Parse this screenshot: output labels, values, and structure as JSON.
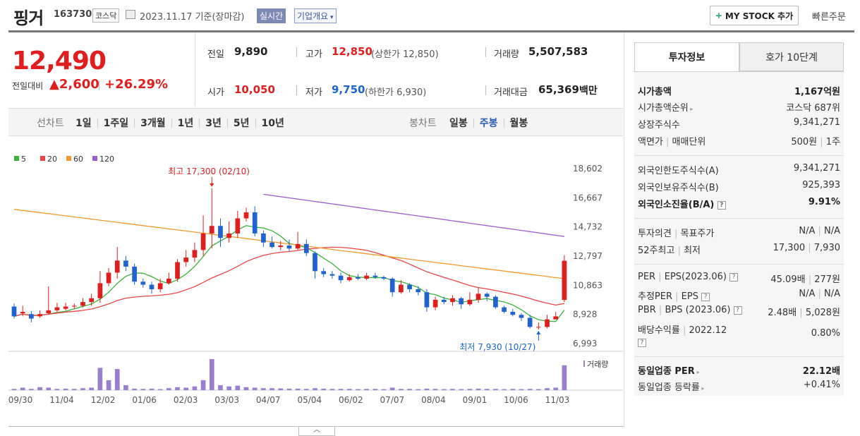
{
  "header": {
    "name": "핑거",
    "code": "163730",
    "market_tag": "코스닥",
    "date": "2023.11.17  기준(장마감)",
    "realtime": "실시간",
    "overview": "기업개요",
    "mystock": "MY STOCK 추가",
    "quick": "빠른주문"
  },
  "price": {
    "current": "12,490",
    "diff_label": "전일대비",
    "diff": "▲2,600",
    "rate": "+26.29%"
  },
  "quote": {
    "prev_label": "전일",
    "prev": "9,890",
    "high_label": "고가",
    "high": "12,850",
    "upper_limit": "(상한가 12,850)",
    "volume_label": "거래량",
    "volume": "5,507,583",
    "open_label": "시가",
    "open": "10,050",
    "low_label": "저가",
    "low": "9,750",
    "lower_limit": "(하한가 6,930)",
    "amount_label": "거래대금",
    "amount": "65,369",
    "amount_unit": "백만"
  },
  "periods": {
    "line_label": "선차트",
    "line": [
      "1일",
      "1주일",
      "3개월",
      "1년",
      "3년",
      "5년",
      "10년"
    ],
    "candle_label": "봉차트",
    "candle": [
      "일봉",
      "주봉",
      "월봉"
    ],
    "active": "주봉"
  },
  "tabs": [
    "투자정보",
    "호가 10단계"
  ],
  "info": {
    "market_cap_label": "시가총액",
    "market_cap": "1,167억원",
    "rank_label": "시가총액순위",
    "rank": "코스닥 687위",
    "shares_label": "상장주식수",
    "shares": "9,341,271",
    "par_label": "액면가",
    "unit_label": "매매단위",
    "par": "500원",
    "unit": "1주",
    "foreign_limit_label": "외국인한도주식수(A)",
    "foreign_limit": "9,341,271",
    "foreign_hold_label": "외국인보유주식수(B)",
    "foreign_hold": "925,393",
    "foreign_rate_label": "외국인소진율(B/A)",
    "foreign_rate": "9.91%",
    "opinion_label": "투자의견",
    "target_label": "목표주가",
    "opinion": "N/A",
    "target": "N/A",
    "w52_label": "52주최고",
    "w52_low_label": "최저",
    "w52_high": "17,300",
    "w52_low": "7,930",
    "per_label": "PER",
    "eps_label": "EPS(2023.06)",
    "per": "45.09배",
    "eps": "277원",
    "est_per_label": "추정PER",
    "est_eps_label": "EPS",
    "est_per": "N/A",
    "est_eps": "N/A",
    "pbr_label": "PBR",
    "bps_label": "BPS (2023.06)",
    "pbr": "2.48배",
    "bps": "5,028원",
    "div_label": "배당수익률",
    "div_date": "2022.12",
    "div": "0.80%",
    "sector_per_label": "동일업종 PER",
    "sector_per": "22.12배",
    "sector_rate_label": "동일업종 등락률",
    "sector_rate": "+0.41%"
  },
  "chart_data": {
    "type": "candlestick",
    "legend": [
      {
        "name": "5",
        "color": "#3cb33c"
      },
      {
        "name": "20",
        "color": "#e84646"
      },
      {
        "name": "60",
        "color": "#f39a2c"
      },
      {
        "name": "120",
        "color": "#9b5fd0"
      }
    ],
    "y_ticks": [
      "18,602",
      "16,667",
      "14,732",
      "12,797",
      "10,863",
      "8,928",
      "6,993"
    ],
    "ylim": [
      6993,
      18602
    ],
    "x_ticks": [
      "09/30",
      "11/04",
      "12/02",
      "01/06",
      "02/03",
      "03/03",
      "04/07",
      "05/04",
      "06/02",
      "07/07",
      "08/04",
      "09/01",
      "10/06",
      "11/03"
    ],
    "max_label": "최고 17,300 (02/10)",
    "min_label": "최저 7,930 (10/27)",
    "volume_label": "거래량",
    "candles": [
      [
        9450,
        8800,
        9650,
        8650
      ],
      [
        9000,
        9100,
        9500,
        8800
      ],
      [
        8950,
        8650,
        9150,
        8400
      ],
      [
        8800,
        8950,
        9200,
        8700
      ],
      [
        9000,
        9200,
        10800,
        8900
      ],
      [
        9200,
        9400,
        9700,
        9100
      ],
      [
        9300,
        9450,
        9700,
        9200
      ],
      [
        9450,
        9500,
        9650,
        9300
      ],
      [
        9500,
        9750,
        10000,
        9400
      ],
      [
        9750,
        10000,
        10300,
        9500
      ],
      [
        10000,
        11000,
        11800,
        9700
      ],
      [
        11000,
        11700,
        12000,
        10800
      ],
      [
        11700,
        12500,
        13400,
        11300
      ],
      [
        12500,
        12100,
        12800,
        11800
      ],
      [
        12100,
        11100,
        12300,
        10900
      ],
      [
        11100,
        10900,
        11300,
        10700
      ],
      [
        10900,
        10600,
        11100,
        10300
      ],
      [
        10600,
        11000,
        11300,
        10400
      ],
      [
        11000,
        11300,
        11700,
        10900
      ],
      [
        11300,
        12400,
        12600,
        11100
      ],
      [
        12400,
        12700,
        13200,
        12100
      ],
      [
        12700,
        13200,
        13700,
        12400
      ],
      [
        13200,
        14300,
        15500,
        12800
      ],
      [
        14300,
        14800,
        17300,
        13300
      ],
      [
        14800,
        14000,
        15300,
        13400
      ],
      [
        14000,
        14300,
        15100,
        13700
      ],
      [
        14300,
        15300,
        15800,
        14000
      ],
      [
        15300,
        15700,
        16000,
        15100
      ],
      [
        15700,
        14300,
        16100,
        14100
      ],
      [
        14300,
        13700,
        14500,
        13400
      ],
      [
        13700,
        13400,
        14100,
        13300
      ],
      [
        13400,
        13500,
        13800,
        13200
      ],
      [
        13500,
        13300,
        13900,
        13100
      ],
      [
        13300,
        13600,
        14400,
        13200
      ],
      [
        13600,
        13000,
        13900,
        12800
      ],
      [
        13000,
        11800,
        13100,
        11300
      ],
      [
        11800,
        11600,
        12000,
        11400
      ],
      [
        11600,
        11500,
        11800,
        11300
      ],
      [
        11500,
        11200,
        11700,
        11000
      ],
      [
        11200,
        11400,
        11600,
        11100
      ],
      [
        11400,
        11300,
        11600,
        11200
      ],
      [
        11300,
        11500,
        11700,
        11200
      ],
      [
        11500,
        11400,
        11700,
        11300
      ],
      [
        11400,
        11300,
        11500,
        11200
      ],
      [
        11300,
        10400,
        11400,
        10100
      ],
      [
        10400,
        10900,
        11200,
        10300
      ],
      [
        10900,
        10600,
        11000,
        10400
      ],
      [
        10600,
        10400,
        10800,
        10200
      ],
      [
        10400,
        9400,
        10600,
        9100
      ],
      [
        9400,
        9900,
        10100,
        9200
      ],
      [
        9900,
        9750,
        10100,
        9600
      ],
      [
        9750,
        10000,
        10200,
        9500
      ],
      [
        10000,
        9600,
        10100,
        9300
      ],
      [
        9600,
        9900,
        10400,
        9500
      ],
      [
        9900,
        10300,
        10700,
        9700
      ],
      [
        10300,
        10100,
        10400,
        9800
      ],
      [
        10100,
        9400,
        10200,
        9300
      ],
      [
        9400,
        9100,
        9500,
        9000
      ],
      [
        9100,
        8900,
        9300,
        8800
      ],
      [
        8900,
        8700,
        9000,
        8500
      ],
      [
        8700,
        8100,
        8900,
        8000
      ],
      [
        8100,
        8100,
        8400,
        7930
      ],
      [
        8100,
        8600,
        8900,
        8000
      ],
      [
        8600,
        8800,
        9100,
        8700
      ],
      [
        9890,
        12490,
        12850,
        9750
      ]
    ],
    "volumes": [
      0.05,
      0.1,
      0.05,
      0.12,
      0.1,
      0.05,
      0.06,
      0.05,
      0.08,
      0.1,
      0.9,
      0.4,
      0.85,
      0.2,
      0.06,
      0.05,
      0.06,
      0.04,
      0.08,
      0.12,
      0.1,
      0.15,
      0.4,
      1.25,
      0.2,
      0.15,
      0.18,
      0.12,
      0.1,
      0.08,
      0.08,
      0.07,
      0.06,
      0.06,
      0.05,
      0.08,
      0.06,
      0.05,
      0.05,
      0.05,
      0.04,
      0.05,
      0.05,
      0.04,
      0.1,
      0.05,
      0.05,
      0.04,
      0.06,
      0.05,
      0.04,
      0.05,
      0.04,
      0.05,
      0.06,
      0.05,
      0.05,
      0.04,
      0.05,
      0.04,
      0.05,
      0.04,
      0.08,
      0.1,
      1.0
    ]
  }
}
